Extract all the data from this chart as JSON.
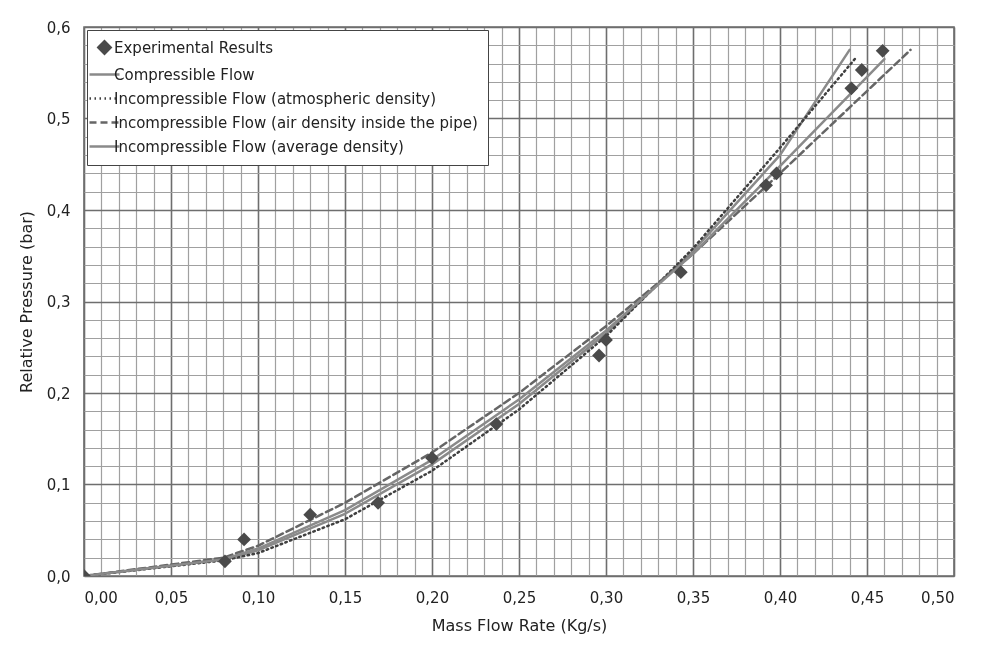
{
  "chart_data": {
    "type": "line",
    "xlabel": "Mass Flow Rate (Kg/s)",
    "ylabel": "Relative Pressure (bar)",
    "xlim": [
      0,
      0.5
    ],
    "ylim": [
      0,
      0.6
    ],
    "xticks": [
      {
        "value": 0,
        "label": "0,00"
      },
      {
        "value": 0.05,
        "label": "0,05"
      },
      {
        "value": 0.1,
        "label": "0,10"
      },
      {
        "value": 0.15,
        "label": "0,15"
      },
      {
        "value": 0.2,
        "label": "0,20"
      },
      {
        "value": 0.25,
        "label": "0,25"
      },
      {
        "value": 0.3,
        "label": "0,30"
      },
      {
        "value": 0.35,
        "label": "0,35"
      },
      {
        "value": 0.4,
        "label": "0,40"
      },
      {
        "value": 0.45,
        "label": "0,45"
      },
      {
        "value": 0.5,
        "label": "0,50"
      }
    ],
    "yticks": [
      {
        "value": 0,
        "label": "0,0"
      },
      {
        "value": 0.1,
        "label": "0,1"
      },
      {
        "value": 0.2,
        "label": "0,2"
      },
      {
        "value": 0.3,
        "label": "0,3"
      },
      {
        "value": 0.4,
        "label": "0,4"
      },
      {
        "value": 0.5,
        "label": "0,5"
      },
      {
        "value": 0.6,
        "label": "0,6"
      }
    ],
    "grid": true,
    "legend": "top left",
    "series": [
      {
        "name": "Experimental Results",
        "type": "scatter",
        "marker": "diamond",
        "color": "#4a4a4a",
        "x": [
          0,
          0.081,
          0.092,
          0.13,
          0.169,
          0.2,
          0.237,
          0.296,
          0.3,
          0.343,
          0.392,
          0.398,
          0.441,
          0.447,
          0.459
        ],
        "values": [
          0,
          0.016,
          0.04,
          0.067,
          0.08,
          0.129,
          0.166,
          0.241,
          0.258,
          0.332,
          0.427,
          0.44,
          0.533,
          0.553,
          0.574
        ]
      },
      {
        "name": "Compressible Flow",
        "line_style": "solid",
        "color": "#8a8a8a",
        "x": [
          0,
          0.08,
          0.1,
          0.15,
          0.2,
          0.25,
          0.3,
          0.35,
          0.4,
          0.44
        ],
        "values": [
          0,
          0.018,
          0.028,
          0.068,
          0.122,
          0.188,
          0.265,
          0.355,
          0.46,
          0.575
        ]
      },
      {
        "name": "Incompressible Flow (atmospheric density)",
        "line_style": "dotted",
        "color": "#404040",
        "x": [
          0,
          0.08,
          0.1,
          0.15,
          0.2,
          0.25,
          0.3,
          0.35,
          0.4,
          0.443
        ],
        "values": [
          0,
          0.017,
          0.025,
          0.062,
          0.115,
          0.182,
          0.262,
          0.358,
          0.468,
          0.565
        ]
      },
      {
        "name": "Incompressible Flow (air density inside the pipe)",
        "line_style": "dashed",
        "color": "#666666",
        "x": [
          0,
          0.08,
          0.1,
          0.15,
          0.2,
          0.25,
          0.3,
          0.35,
          0.4,
          0.475
        ],
        "values": [
          0,
          0.02,
          0.033,
          0.08,
          0.135,
          0.2,
          0.273,
          0.352,
          0.44,
          0.575
        ]
      },
      {
        "name": "Incompressible Flow (average density)",
        "line_style": "solid",
        "color": "#8a8a8a",
        "x": [
          0,
          0.08,
          0.1,
          0.15,
          0.2,
          0.25,
          0.3,
          0.35,
          0.4,
          0.46
        ],
        "values": [
          0,
          0.018,
          0.03,
          0.072,
          0.127,
          0.193,
          0.268,
          0.352,
          0.448,
          0.565
        ]
      }
    ]
  }
}
